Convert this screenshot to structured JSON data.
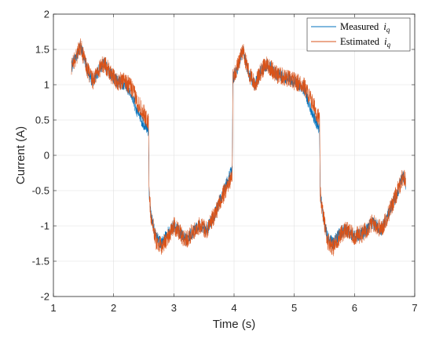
{
  "chart_data": {
    "type": "line",
    "title": "",
    "xlabel": "Time (s)",
    "ylabel": "Current (A)",
    "xlim": [
      1,
      7
    ],
    "ylim": [
      -2,
      2
    ],
    "xticks": [
      1,
      2,
      3,
      4,
      5,
      6,
      7
    ],
    "yticks": [
      -2,
      -1.5,
      -1,
      -0.5,
      0,
      0.5,
      1,
      1.5,
      2
    ],
    "xtick_labels": [
      "1",
      "2",
      "3",
      "4",
      "5",
      "6",
      "7"
    ],
    "ytick_labels": [
      "-2",
      "-1.5",
      "-1",
      "-0.5",
      "0",
      "0.5",
      "1",
      "1.5",
      "2"
    ],
    "grid": true,
    "legend_position": "top-right",
    "series": [
      {
        "name": "Measured",
        "name_subscript_var": "i",
        "name_subscript": "q",
        "color": "#0072BD",
        "noise_amplitude": 0.09,
        "x": [
          1.3,
          1.38,
          1.45,
          1.55,
          1.65,
          1.78,
          1.85,
          1.95,
          2.05,
          2.2,
          2.3,
          2.4,
          2.5,
          2.58,
          2.59,
          2.62,
          2.7,
          2.8,
          2.9,
          3.0,
          3.1,
          3.2,
          3.3,
          3.42,
          3.55,
          3.7,
          3.85,
          3.97,
          3.98,
          4.05,
          4.15,
          4.25,
          4.35,
          4.45,
          4.55,
          4.7,
          4.85,
          5.0,
          5.15,
          5.3,
          5.42,
          5.43,
          5.48,
          5.55,
          5.65,
          5.75,
          5.85,
          6.0,
          6.15,
          6.3,
          6.45,
          6.6,
          6.72,
          6.8,
          6.85
        ],
        "y": [
          1.25,
          1.4,
          1.55,
          1.25,
          1.05,
          1.25,
          1.3,
          1.15,
          1.05,
          1.0,
          0.85,
          0.6,
          0.45,
          0.35,
          -0.55,
          -0.85,
          -1.15,
          -1.25,
          -1.1,
          -1.0,
          -1.1,
          -1.2,
          -1.1,
          -1.0,
          -1.05,
          -0.8,
          -0.45,
          -0.2,
          1.1,
          1.2,
          1.5,
          1.15,
          1.0,
          1.2,
          1.3,
          1.15,
          1.1,
          1.05,
          0.95,
          0.6,
          0.35,
          -0.55,
          -0.85,
          -1.15,
          -1.25,
          -1.1,
          -1.05,
          -1.15,
          -1.1,
          -0.95,
          -1.05,
          -0.75,
          -0.5,
          -0.3,
          -0.4
        ]
      },
      {
        "name": "Estimated",
        "name_subscript_var": "i",
        "name_subscript": "q",
        "color": "#D95319",
        "noise_amplitude": 0.13,
        "x": [
          1.3,
          1.38,
          1.45,
          1.55,
          1.65,
          1.78,
          1.85,
          1.95,
          2.05,
          2.2,
          2.3,
          2.4,
          2.5,
          2.58,
          2.59,
          2.62,
          2.7,
          2.8,
          2.9,
          3.0,
          3.1,
          3.2,
          3.3,
          3.42,
          3.55,
          3.7,
          3.85,
          3.97,
          3.98,
          4.05,
          4.15,
          4.25,
          4.35,
          4.45,
          4.55,
          4.7,
          4.85,
          5.0,
          5.15,
          5.3,
          5.42,
          5.43,
          5.48,
          5.55,
          5.65,
          5.75,
          5.85,
          6.0,
          6.15,
          6.3,
          6.45,
          6.6,
          6.72,
          6.8,
          6.85
        ],
        "y": [
          1.25,
          1.4,
          1.55,
          1.25,
          1.05,
          1.25,
          1.3,
          1.15,
          1.05,
          1.05,
          0.95,
          0.75,
          0.6,
          0.45,
          -0.55,
          -0.85,
          -1.2,
          -1.3,
          -1.15,
          -1.0,
          -1.1,
          -1.2,
          -1.1,
          -1.0,
          -1.05,
          -0.8,
          -0.5,
          -0.3,
          1.1,
          1.25,
          1.5,
          1.15,
          1.0,
          1.2,
          1.3,
          1.15,
          1.1,
          1.05,
          1.0,
          0.75,
          0.5,
          -0.55,
          -0.85,
          -1.2,
          -1.3,
          -1.15,
          -1.05,
          -1.15,
          -1.1,
          -0.95,
          -1.05,
          -0.75,
          -0.5,
          -0.3,
          -0.35
        ]
      }
    ]
  }
}
